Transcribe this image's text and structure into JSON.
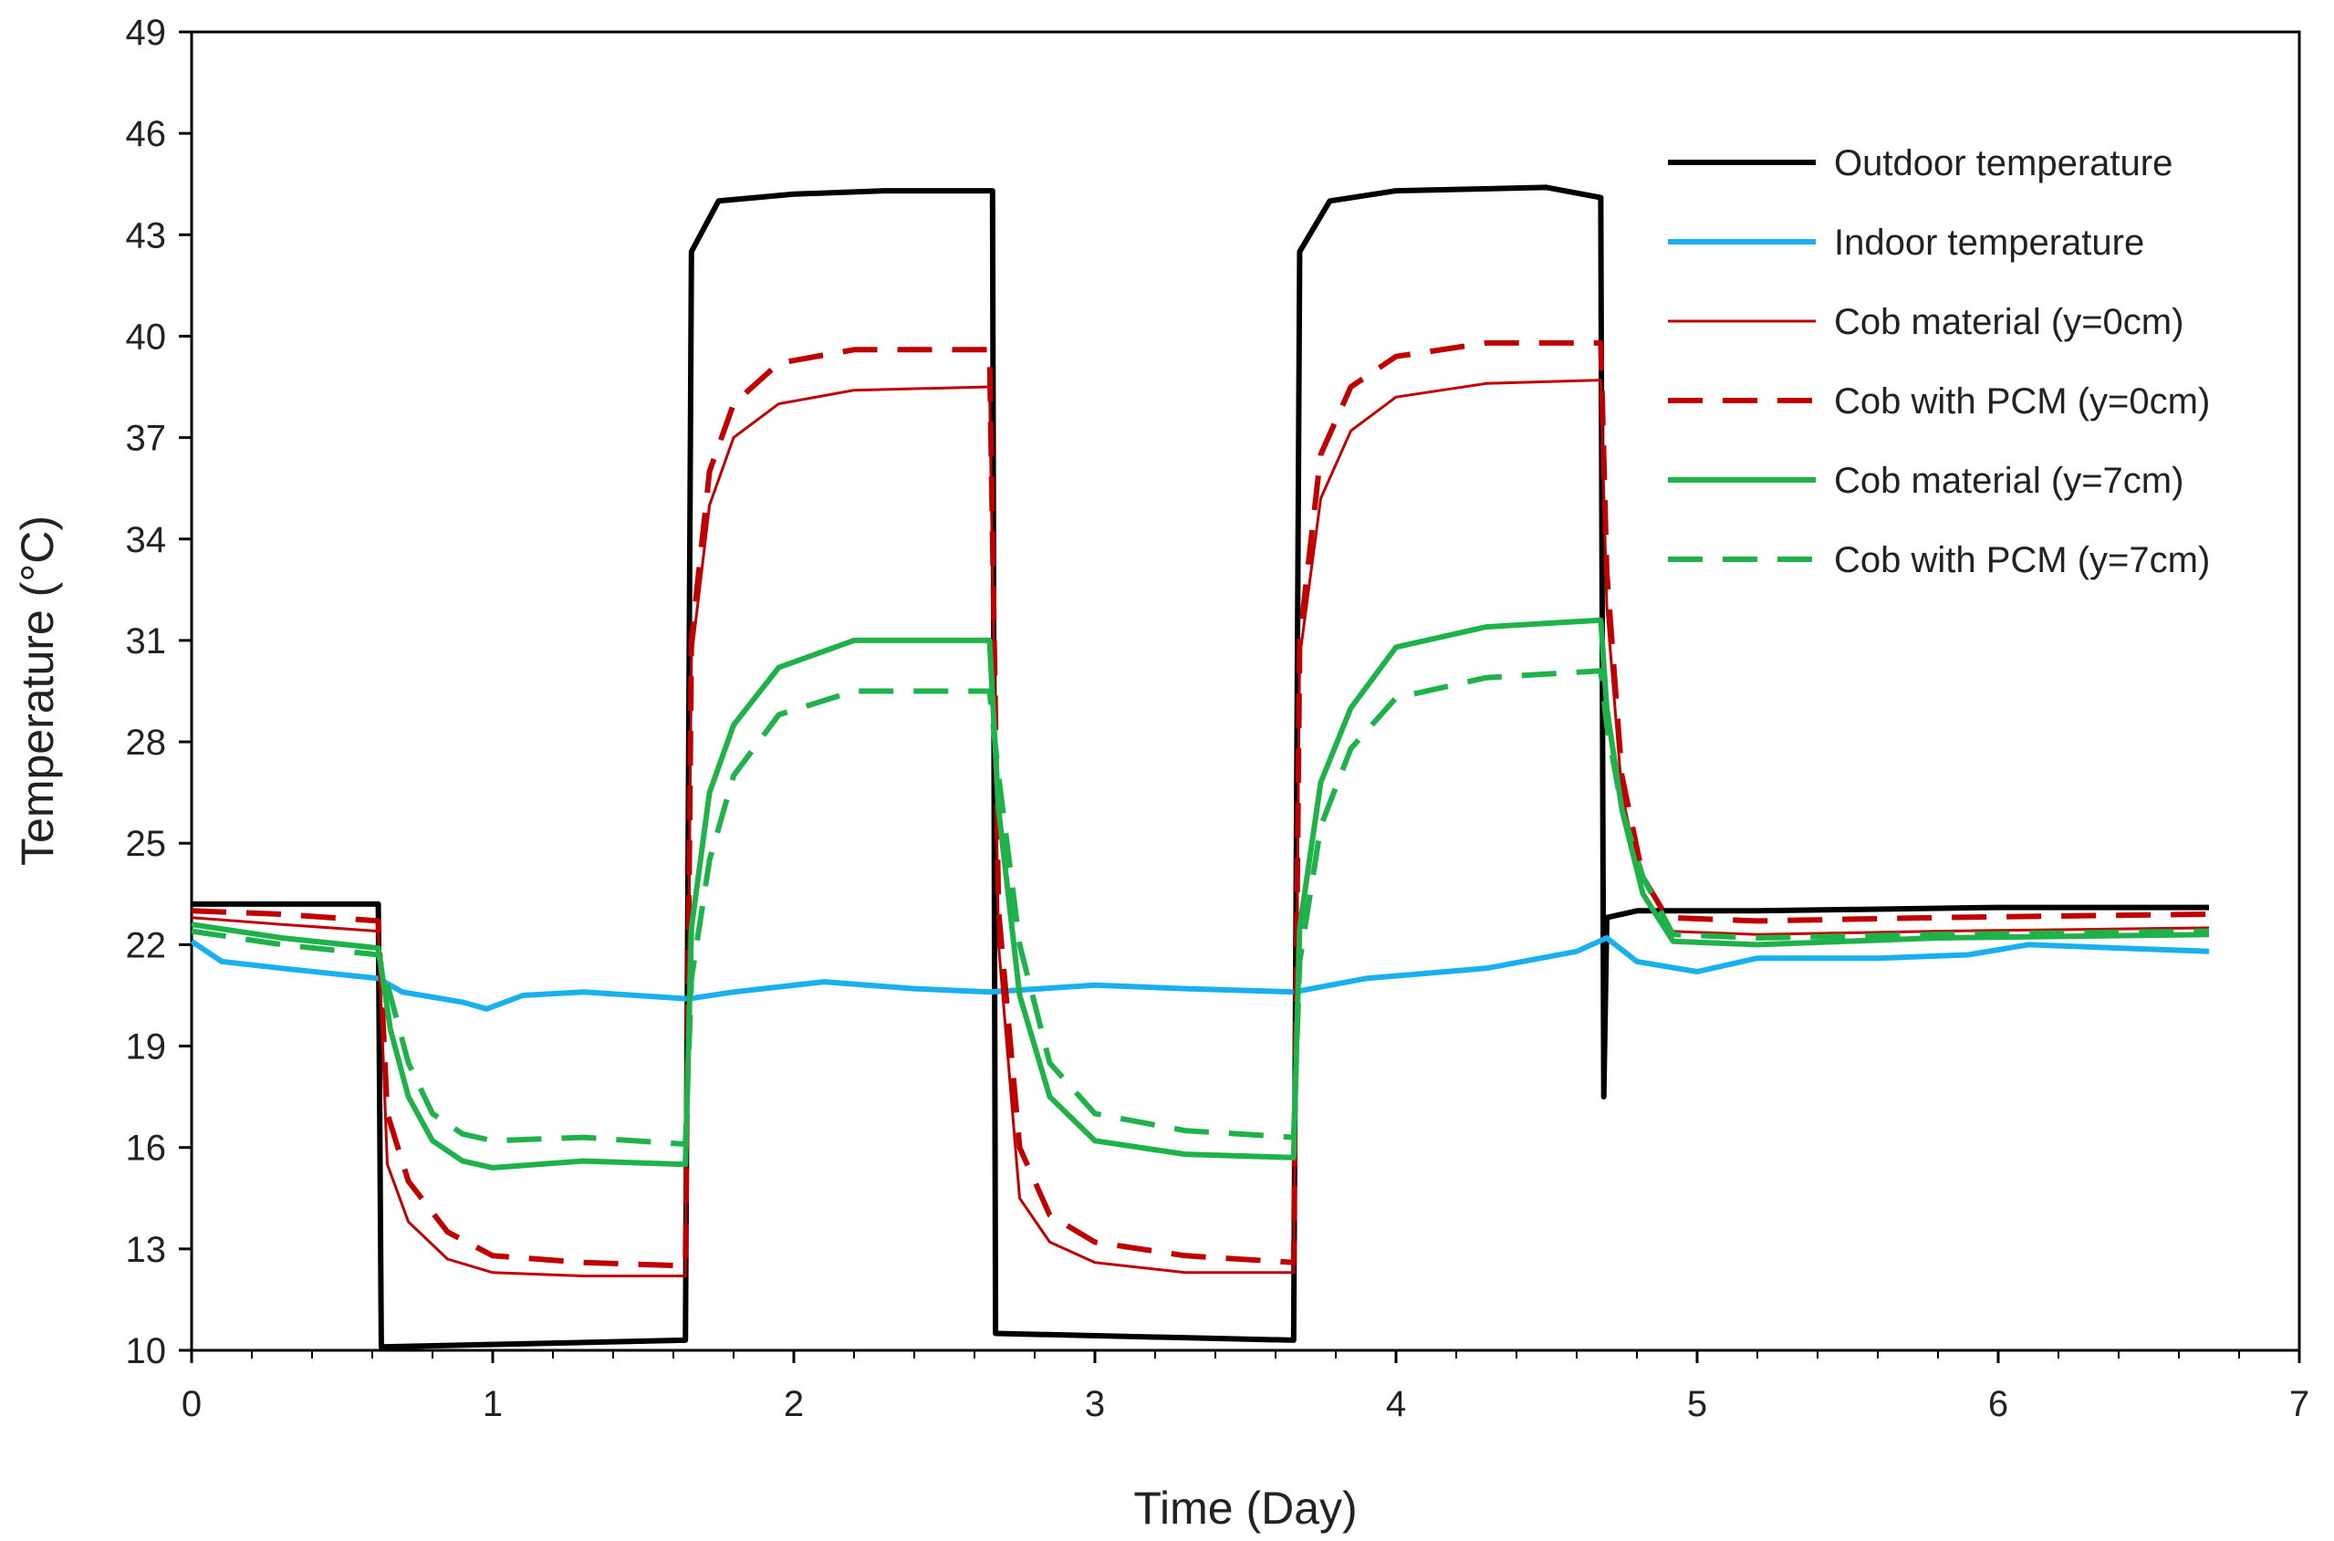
{
  "chart_data": {
    "type": "line",
    "title": "",
    "xlabel": "Time (Day)",
    "ylabel": "Temperature (°C)",
    "xlim": [
      0,
      7
    ],
    "ylim": [
      10,
      49
    ],
    "xticks": [
      "0",
      "1",
      "2",
      "3",
      "4",
      "5",
      "6",
      "7"
    ],
    "yticks": [
      "10",
      "13",
      "16",
      "19",
      "22",
      "25",
      "28",
      "31",
      "34",
      "37",
      "40",
      "43",
      "46",
      "49"
    ],
    "minor_x_step": 0.2,
    "grid": false,
    "legend_position": "top-right",
    "series": [
      {
        "name": "Outdoor temperature",
        "color": "#000000",
        "style": "solid",
        "weight": "bold",
        "points": [
          [
            0,
            23.2
          ],
          [
            0.62,
            23.2
          ],
          [
            0.63,
            10.1
          ],
          [
            1.64,
            10.3
          ],
          [
            1.66,
            42.5
          ],
          [
            1.75,
            44.0
          ],
          [
            2.0,
            44.2
          ],
          [
            2.3,
            44.3
          ],
          [
            2.66,
            44.3
          ],
          [
            2.67,
            10.5
          ],
          [
            3.66,
            10.3
          ],
          [
            3.68,
            42.5
          ],
          [
            3.78,
            44.0
          ],
          [
            4.0,
            44.3
          ],
          [
            4.5,
            44.4
          ],
          [
            4.68,
            44.1
          ],
          [
            4.69,
            17.5
          ],
          [
            4.7,
            22.8
          ],
          [
            4.8,
            23.0
          ],
          [
            5.2,
            23.0
          ],
          [
            6.0,
            23.1
          ],
          [
            6.7,
            23.1
          ]
        ]
      },
      {
        "name": "Indoor temperature",
        "color": "#1ab0ee",
        "style": "solid",
        "weight": "bold",
        "points": [
          [
            0,
            22.1
          ],
          [
            0.1,
            21.5
          ],
          [
            0.3,
            21.3
          ],
          [
            0.62,
            21.0
          ],
          [
            0.7,
            20.6
          ],
          [
            0.9,
            20.3
          ],
          [
            0.98,
            20.1
          ],
          [
            1.1,
            20.5
          ],
          [
            1.3,
            20.6
          ],
          [
            1.65,
            20.4
          ],
          [
            1.8,
            20.6
          ],
          [
            2.1,
            20.9
          ],
          [
            2.4,
            20.7
          ],
          [
            2.65,
            20.6
          ],
          [
            3.0,
            20.8
          ],
          [
            3.3,
            20.7
          ],
          [
            3.66,
            20.6
          ],
          [
            3.9,
            21.0
          ],
          [
            4.3,
            21.3
          ],
          [
            4.6,
            21.8
          ],
          [
            4.7,
            22.2
          ],
          [
            4.8,
            21.5
          ],
          [
            5.0,
            21.2
          ],
          [
            5.2,
            21.6
          ],
          [
            5.6,
            21.6
          ],
          [
            5.9,
            21.7
          ],
          [
            6.1,
            22.0
          ],
          [
            6.4,
            21.9
          ],
          [
            6.7,
            21.8
          ]
        ]
      },
      {
        "name": "Cob material (y=0cm)",
        "color": "#c00000",
        "style": "solid",
        "weight": "thin",
        "points": [
          [
            0,
            22.8
          ],
          [
            0.3,
            22.6
          ],
          [
            0.62,
            22.4
          ],
          [
            0.65,
            15.5
          ],
          [
            0.72,
            13.8
          ],
          [
            0.85,
            12.7
          ],
          [
            1.0,
            12.3
          ],
          [
            1.3,
            12.2
          ],
          [
            1.64,
            12.2
          ],
          [
            1.66,
            30.5
          ],
          [
            1.72,
            35.0
          ],
          [
            1.8,
            37.0
          ],
          [
            1.95,
            38.0
          ],
          [
            2.2,
            38.4
          ],
          [
            2.65,
            38.5
          ],
          [
            2.68,
            22.0
          ],
          [
            2.75,
            14.5
          ],
          [
            2.85,
            13.2
          ],
          [
            3.0,
            12.6
          ],
          [
            3.3,
            12.3
          ],
          [
            3.66,
            12.3
          ],
          [
            3.68,
            30.5
          ],
          [
            3.75,
            35.2
          ],
          [
            3.85,
            37.2
          ],
          [
            4.0,
            38.2
          ],
          [
            4.3,
            38.6
          ],
          [
            4.68,
            38.7
          ],
          [
            4.7,
            32.0
          ],
          [
            4.75,
            26.5
          ],
          [
            4.82,
            23.5
          ],
          [
            4.9,
            22.4
          ],
          [
            5.2,
            22.3
          ],
          [
            5.8,
            22.4
          ],
          [
            6.7,
            22.5
          ]
        ]
      },
      {
        "name": "Cob with PCM (y=0cm)",
        "color": "#c00000",
        "style": "dashed",
        "weight": "bold",
        "points": [
          [
            0,
            23.0
          ],
          [
            0.3,
            22.9
          ],
          [
            0.62,
            22.7
          ],
          [
            0.65,
            17.0
          ],
          [
            0.72,
            15.0
          ],
          [
            0.85,
            13.5
          ],
          [
            1.0,
            12.8
          ],
          [
            1.3,
            12.6
          ],
          [
            1.64,
            12.5
          ],
          [
            1.66,
            31.0
          ],
          [
            1.72,
            36.0
          ],
          [
            1.8,
            38.0
          ],
          [
            1.95,
            39.2
          ],
          [
            2.2,
            39.6
          ],
          [
            2.65,
            39.6
          ],
          [
            2.68,
            23.0
          ],
          [
            2.75,
            16.0
          ],
          [
            2.85,
            14.0
          ],
          [
            3.0,
            13.2
          ],
          [
            3.3,
            12.8
          ],
          [
            3.66,
            12.6
          ],
          [
            3.68,
            31.0
          ],
          [
            3.75,
            36.5
          ],
          [
            3.85,
            38.5
          ],
          [
            4.0,
            39.4
          ],
          [
            4.3,
            39.8
          ],
          [
            4.68,
            39.8
          ],
          [
            4.7,
            33.0
          ],
          [
            4.75,
            27.0
          ],
          [
            4.82,
            24.0
          ],
          [
            4.9,
            22.8
          ],
          [
            5.2,
            22.7
          ],
          [
            5.8,
            22.8
          ],
          [
            6.7,
            22.9
          ]
        ]
      },
      {
        "name": "Cob material (y=7cm)",
        "color": "#1fb24a",
        "style": "solid",
        "weight": "bold",
        "points": [
          [
            0,
            22.6
          ],
          [
            0.3,
            22.2
          ],
          [
            0.62,
            21.9
          ],
          [
            0.66,
            19.5
          ],
          [
            0.72,
            17.5
          ],
          [
            0.8,
            16.2
          ],
          [
            0.9,
            15.6
          ],
          [
            1.0,
            15.4
          ],
          [
            1.3,
            15.6
          ],
          [
            1.64,
            15.5
          ],
          [
            1.66,
            22.5
          ],
          [
            1.72,
            26.5
          ],
          [
            1.8,
            28.5
          ],
          [
            1.95,
            30.2
          ],
          [
            2.2,
            31.0
          ],
          [
            2.65,
            31.0
          ],
          [
            2.68,
            26.0
          ],
          [
            2.75,
            20.5
          ],
          [
            2.85,
            17.5
          ],
          [
            3.0,
            16.2
          ],
          [
            3.3,
            15.8
          ],
          [
            3.66,
            15.7
          ],
          [
            3.68,
            22.5
          ],
          [
            3.75,
            26.8
          ],
          [
            3.85,
            29.0
          ],
          [
            4.0,
            30.8
          ],
          [
            4.3,
            31.4
          ],
          [
            4.68,
            31.6
          ],
          [
            4.7,
            29.0
          ],
          [
            4.75,
            26.0
          ],
          [
            4.82,
            23.5
          ],
          [
            4.92,
            22.1
          ],
          [
            5.2,
            22.0
          ],
          [
            5.8,
            22.2
          ],
          [
            6.7,
            22.3
          ]
        ]
      },
      {
        "name": "Cob with PCM (y=7cm)",
        "color": "#1fb24a",
        "style": "dashed",
        "weight": "bold",
        "points": [
          [
            0,
            22.4
          ],
          [
            0.3,
            22.0
          ],
          [
            0.62,
            21.7
          ],
          [
            0.66,
            20.5
          ],
          [
            0.72,
            18.5
          ],
          [
            0.8,
            17.0
          ],
          [
            0.9,
            16.4
          ],
          [
            1.0,
            16.2
          ],
          [
            1.3,
            16.3
          ],
          [
            1.64,
            16.1
          ],
          [
            1.66,
            21.0
          ],
          [
            1.72,
            24.5
          ],
          [
            1.8,
            27.0
          ],
          [
            1.95,
            28.8
          ],
          [
            2.2,
            29.5
          ],
          [
            2.65,
            29.5
          ],
          [
            2.68,
            27.0
          ],
          [
            2.75,
            22.0
          ],
          [
            2.85,
            18.5
          ],
          [
            3.0,
            17.0
          ],
          [
            3.3,
            16.5
          ],
          [
            3.66,
            16.3
          ],
          [
            3.68,
            21.5
          ],
          [
            3.75,
            25.5
          ],
          [
            3.85,
            27.8
          ],
          [
            4.0,
            29.3
          ],
          [
            4.3,
            29.9
          ],
          [
            4.68,
            30.1
          ],
          [
            4.7,
            28.5
          ],
          [
            4.75,
            26.0
          ],
          [
            4.82,
            24.0
          ],
          [
            4.92,
            22.3
          ],
          [
            5.2,
            22.2
          ],
          [
            5.8,
            22.3
          ],
          [
            6.7,
            22.4
          ]
        ]
      }
    ]
  }
}
